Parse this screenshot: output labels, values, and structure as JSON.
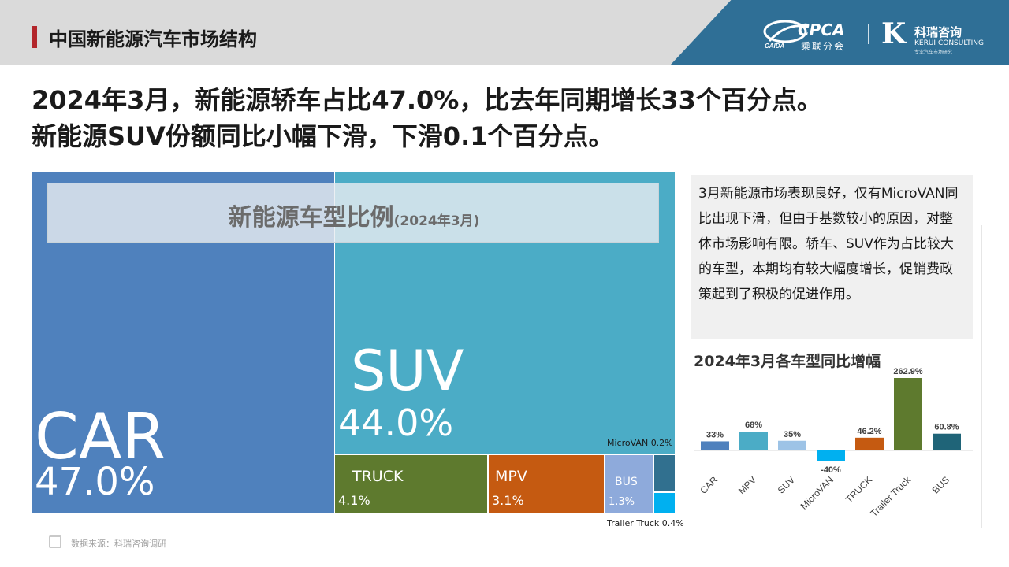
{
  "header": {
    "title": "中国新能源汽车市场结构",
    "cpca_logo_text": "CPCA",
    "cpca_logo_sub": "乘联分会",
    "cpca_logo_mark": "CAIDA",
    "kerui_logo_cn": "科瑞咨询",
    "kerui_logo_en": "KERUI CONSULTING",
    "kerui_logo_tag": "专业汽车市场研究"
  },
  "headline": {
    "line1": "2024年3月，新能源轿车占比47.0%，比去年同期增长33个百分点。",
    "line2": "新能源SUV份额同比小幅下滑，下滑0.1个百分点。"
  },
  "treemap_title": {
    "main": "新能源车型比例",
    "sub": "(2024年3月)"
  },
  "commentary": "3月新能源市场表现良好，仅有MicroVAN同比出现下滑，但由于基数较小的原因，对整体市场影响有限。轿车、SUV作为占比较大的车型，本期均有较大幅度增长，促销费政策起到了积极的促进作用。",
  "source": "数据来源：科瑞咨询调研",
  "chart_data": [
    {
      "type": "treemap",
      "title": "新能源车型比例",
      "subtitle": "(2024年3月)",
      "categories": [
        "CAR",
        "SUV",
        "TRUCK",
        "MPV",
        "BUS",
        "MicroVAN",
        "Trailer Truck"
      ],
      "values": [
        47.0,
        44.0,
        4.1,
        3.1,
        1.3,
        0.2,
        0.4
      ],
      "labels": [
        "47.0%",
        "44.0%",
        "4.1%",
        "3.1%",
        "1.3%",
        "0.2%",
        "0.4%"
      ],
      "colors": [
        "#4f81bd",
        "#4bacc6",
        "#5e7a2e",
        "#c55a11",
        "#8eaadb",
        "#31708f",
        "#00b0f0"
      ]
    },
    {
      "type": "bar",
      "title": "2024年3月各车型同比增幅",
      "categories": [
        "CAR",
        "MPV",
        "SUV",
        "MicroVAN",
        "TRUCK",
        "Trailer Truck",
        "BUS"
      ],
      "values": [
        33,
        68,
        35,
        -40,
        46.2,
        262.9,
        60.8
      ],
      "data_labels": [
        "33%",
        "68%",
        "35%",
        "-40%",
        "46.2%",
        "262.9%",
        "60.8%"
      ],
      "colors": [
        "#4f81bd",
        "#4bacc6",
        "#9dc3e6",
        "#00b0f0",
        "#c55a11",
        "#5e7a2e",
        "#1f6478"
      ],
      "ylim": [
        -40,
        262.9
      ],
      "grid": false,
      "legend": "none"
    }
  ]
}
